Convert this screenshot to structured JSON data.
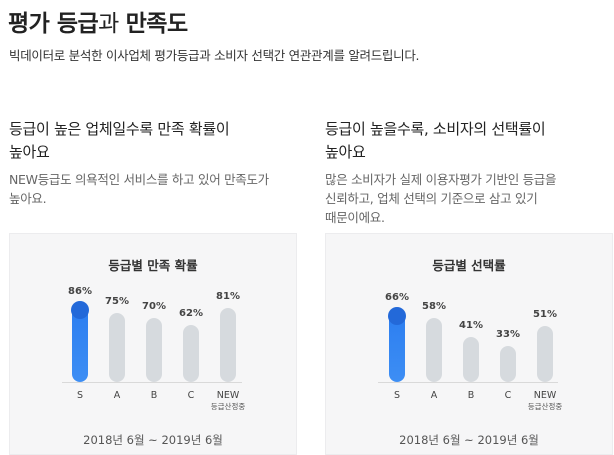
{
  "header": {
    "title_bold1": "평가 등급",
    "title_light": "과 ",
    "title_bold2": "만족도",
    "subtitle": "빅데이터로 분석한 이사업체 평가등급과 소비자 선택간 연관관계를 알려드립니다."
  },
  "left": {
    "heading_line1": "등급이 높은 업체일수록 만족 확률이",
    "heading_line2": "높아요",
    "desc_line1": "NEW등급도 의욕적인 서비스를 하고 있어 만족도가",
    "desc_line2": "높아요."
  },
  "right": {
    "heading_line1": "등급이 높을수록, 소비자의 선택률이",
    "heading_line2": "높아요",
    "desc_line1": "많은 소비자가 실제 이용자평가 기반인 등급을",
    "desc_line2": "신뢰하고, 업체 선택의 기준으로 삼고 있기",
    "desc_line3": "때문이에요."
  },
  "chart_data": [
    {
      "type": "bar",
      "title": "등급별 만족 확률",
      "categories": [
        "S",
        "A",
        "B",
        "C",
        "NEW"
      ],
      "category_sublabels": [
        "",
        "",
        "",
        "",
        "등급산정중"
      ],
      "values": [
        86,
        75,
        70,
        62,
        81
      ],
      "value_labels": [
        "86%",
        "75%",
        "70%",
        "62%",
        "81%"
      ],
      "highlight_index": 0,
      "period": "2018년 6월 ~ 2019년 6월",
      "colors": {
        "highlight": "#2b7df0",
        "bar": "#d6dade"
      }
    },
    {
      "type": "bar",
      "title": "등급별 선택률",
      "categories": [
        "S",
        "A",
        "B",
        "C",
        "NEW"
      ],
      "category_sublabels": [
        "",
        "",
        "",
        "",
        "등급산정중"
      ],
      "values": [
        66,
        58,
        41,
        33,
        51
      ],
      "value_labels": [
        "66%",
        "58%",
        "41%",
        "33%",
        "51%"
      ],
      "highlight_index": 0,
      "period": "2018년 6월 ~ 2019년 6월",
      "colors": {
        "highlight": "#2b7df0",
        "bar": "#d6dade"
      }
    }
  ]
}
